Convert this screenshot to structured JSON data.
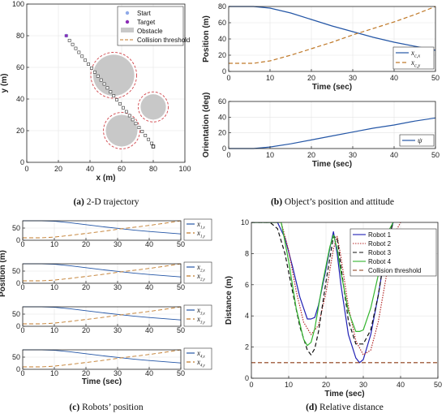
{
  "chart_data": [
    {
      "id": "traj",
      "type": "scatter",
      "xlabel": "x (m)",
      "ylabel": "y (m)",
      "xlim": [
        0,
        100
      ],
      "ylim": [
        0,
        100
      ],
      "xticks": [
        0,
        20,
        40,
        60,
        80,
        100
      ],
      "yticks": [
        0,
        20,
        40,
        60,
        80,
        100
      ],
      "grid": true,
      "legend_position": "top-right",
      "legend": [
        "Start",
        "Target",
        "Obstacle",
        "Collision threshold"
      ],
      "start": [
        25,
        80
      ],
      "target": [
        25,
        80
      ],
      "end": [
        80,
        10
      ],
      "path": [
        [
          25,
          80
        ],
        [
          27,
          77
        ],
        [
          29,
          74.5
        ],
        [
          31,
          72
        ],
        [
          33,
          69.5
        ],
        [
          35,
          67
        ],
        [
          37,
          64.5
        ],
        [
          39,
          62
        ],
        [
          41,
          59.5
        ],
        [
          43,
          57
        ],
        [
          45,
          54.5
        ],
        [
          47,
          52
        ],
        [
          49,
          49.5
        ],
        [
          51,
          47
        ],
        [
          53,
          44.5
        ],
        [
          55,
          42
        ],
        [
          57,
          39.5
        ],
        [
          59,
          37
        ],
        [
          61,
          34.5
        ],
        [
          63,
          32
        ],
        [
          65,
          29.5
        ],
        [
          67,
          27
        ],
        [
          69,
          24.5
        ],
        [
          71,
          22
        ],
        [
          73,
          19.5
        ],
        [
          75,
          17
        ],
        [
          77,
          14.5
        ],
        [
          79,
          12
        ],
        [
          80,
          10
        ]
      ],
      "obstacles": [
        {
          "center": [
            55,
            55
          ],
          "radius": 13
        },
        {
          "center": [
            80,
            35
          ],
          "radius": 8
        },
        {
          "center": [
            60,
            20
          ],
          "radius": 10
        }
      ],
      "caption_tag": "(a)",
      "caption": "2-D trajectory"
    },
    {
      "id": "pos",
      "type": "line",
      "xlabel": "Time (sec)",
      "ylabel": "Position (m)",
      "xlim": [
        0,
        50
      ],
      "ylim": [
        0,
        80
      ],
      "xticks": [
        0,
        10,
        20,
        30,
        40,
        50
      ],
      "yticks": [
        0,
        20,
        40,
        60,
        80
      ],
      "grid": true,
      "legend_position": "bottom-right",
      "x": [
        0,
        6,
        10,
        15,
        20,
        25,
        30,
        35,
        40,
        45,
        50
      ],
      "series": [
        {
          "symbol": "x",
          "subscript": "c,x",
          "color": "#2456a6",
          "dash": "solid",
          "values": [
            80,
            80,
            78,
            72,
            64,
            56,
            49,
            42,
            36,
            31,
            26
          ]
        },
        {
          "symbol": "x",
          "subscript": "c,y",
          "color": "#c07a2a",
          "dash": "dashed",
          "values": [
            10,
            10,
            13,
            20,
            28,
            36,
            45,
            53,
            61,
            70,
            80
          ]
        }
      ]
    },
    {
      "id": "ori",
      "type": "line",
      "xlabel": "Time (sec)",
      "ylabel": "Orientation (deg)",
      "xlim": [
        0,
        50
      ],
      "ylim": [
        0,
        60
      ],
      "xticks": [
        0,
        10,
        20,
        30,
        40,
        50
      ],
      "yticks": [
        0,
        20,
        40,
        60
      ],
      "grid": true,
      "legend_position": "bottom-right",
      "x": [
        0,
        6,
        10,
        15,
        20,
        25,
        30,
        35,
        40,
        45,
        50
      ],
      "series": [
        {
          "symbol": "ψ",
          "subscript": "",
          "color": "#2456a6",
          "dash": "solid",
          "values": [
            0,
            0,
            2,
            6,
            11,
            16,
            21,
            26,
            30,
            35,
            39
          ]
        }
      ],
      "caption_tag": "(b)",
      "caption": "Object’s position and attitude"
    },
    {
      "id": "r1",
      "type": "line",
      "xlim": [
        0,
        50
      ],
      "ylim": [
        0,
        80
      ],
      "xticks": [
        0,
        10,
        20,
        30,
        40,
        50
      ],
      "yticks": [
        0,
        50
      ],
      "show_xticklabels": true,
      "grid": true,
      "legend_position": "right",
      "x": [
        0,
        6,
        10,
        15,
        20,
        25,
        30,
        35,
        40,
        45,
        50
      ],
      "series": [
        {
          "symbol": "x",
          "subscript": "1,x",
          "color": "#2456a6",
          "dash": "solid",
          "values": [
            80,
            80,
            78,
            72,
            64,
            56,
            49,
            42,
            36,
            31,
            26
          ]
        },
        {
          "symbol": "x",
          "subscript": "1,y",
          "color": "#c07a2a",
          "dash": "dashed",
          "values": [
            10,
            10,
            13,
            20,
            28,
            36,
            45,
            53,
            61,
            70,
            80
          ]
        }
      ]
    },
    {
      "id": "r2",
      "type": "line",
      "xlim": [
        0,
        50
      ],
      "ylim": [
        0,
        80
      ],
      "xticks": [
        0,
        10,
        20,
        30,
        40,
        50
      ],
      "yticks": [
        0,
        50
      ],
      "show_xticklabels": true,
      "grid": true,
      "legend_position": "right",
      "ylabel": "Position (m)",
      "x": [
        0,
        6,
        10,
        15,
        20,
        25,
        30,
        35,
        40,
        45,
        50
      ],
      "series": [
        {
          "symbol": "x",
          "subscript": "2,x",
          "color": "#2456a6",
          "dash": "solid",
          "values": [
            80,
            80,
            78,
            72,
            64,
            56,
            49,
            42,
            36,
            31,
            26
          ]
        },
        {
          "symbol": "x",
          "subscript": "2,y",
          "color": "#c07a2a",
          "dash": "dashed",
          "values": [
            10,
            10,
            13,
            20,
            28,
            36,
            45,
            53,
            61,
            70,
            80
          ]
        }
      ]
    },
    {
      "id": "r3",
      "type": "line",
      "xlim": [
        0,
        50
      ],
      "ylim": [
        0,
        80
      ],
      "xticks": [
        0,
        10,
        20,
        30,
        40,
        50
      ],
      "yticks": [
        0,
        50
      ],
      "show_xticklabels": true,
      "grid": true,
      "legend_position": "right",
      "x": [
        0,
        6,
        10,
        15,
        20,
        25,
        30,
        35,
        40,
        45,
        50
      ],
      "series": [
        {
          "symbol": "x",
          "subscript": "3,x",
          "color": "#2456a6",
          "dash": "solid",
          "values": [
            80,
            80,
            78,
            72,
            64,
            56,
            49,
            42,
            36,
            31,
            26
          ]
        },
        {
          "symbol": "x",
          "subscript": "3,y",
          "color": "#c07a2a",
          "dash": "dashed",
          "values": [
            10,
            10,
            13,
            20,
            28,
            36,
            45,
            53,
            61,
            70,
            80
          ]
        }
      ]
    },
    {
      "id": "r4",
      "type": "line",
      "xlim": [
        0,
        50
      ],
      "ylim": [
        0,
        80
      ],
      "xticks": [
        0,
        10,
        20,
        30,
        40,
        50
      ],
      "yticks": [
        0,
        50
      ],
      "show_xticklabels": true,
      "grid": true,
      "legend_position": "right",
      "xlabel": "Time (sec)",
      "x": [
        0,
        6,
        10,
        15,
        20,
        25,
        30,
        35,
        40,
        45,
        50
      ],
      "series": [
        {
          "symbol": "x",
          "subscript": "4,x",
          "color": "#2456a6",
          "dash": "solid",
          "values": [
            80,
            80,
            78,
            72,
            64,
            56,
            49,
            42,
            36,
            31,
            26
          ]
        },
        {
          "symbol": "x",
          "subscript": "4,y",
          "color": "#c07a2a",
          "dash": "dashed",
          "values": [
            10,
            10,
            13,
            20,
            28,
            36,
            45,
            53,
            61,
            70,
            80
          ]
        }
      ],
      "caption_tag": "(c)",
      "caption": "Robots’ position"
    },
    {
      "id": "dist",
      "type": "line",
      "xlabel": "Time (sec)",
      "ylabel": "Distance (m)",
      "xlim": [
        0,
        50
      ],
      "ylim": [
        0,
        10
      ],
      "xticks": [
        0,
        10,
        20,
        30,
        40,
        50
      ],
      "yticks": [
        0,
        2,
        4,
        6,
        8,
        10
      ],
      "grid": true,
      "legend_position": "top-right",
      "series": [
        {
          "name": "Robot 1",
          "color": "#1f1fb4",
          "dash": "solid",
          "x": [
            0,
            5,
            7,
            9,
            11,
            13,
            15,
            16,
            17,
            18,
            20,
            21,
            22,
            23,
            24,
            26,
            28,
            29,
            30,
            32,
            34,
            36,
            38
          ],
          "values": [
            10,
            10,
            10,
            9.0,
            7.2,
            5.2,
            3.8,
            3.8,
            3.9,
            4.7,
            7.0,
            8.3,
            9.4,
            8.0,
            6.0,
            2.8,
            1.3,
            1.0,
            1.2,
            2.8,
            5.3,
            8.2,
            10
          ]
        },
        {
          "name": "Robot 2",
          "color": "#b42828",
          "dash": "dotted",
          "x": [
            0,
            5,
            8,
            10,
            12,
            14,
            16,
            18,
            20,
            22,
            23,
            24,
            26,
            28,
            30,
            32,
            34,
            36,
            38,
            40
          ],
          "values": [
            10,
            10,
            10,
            8.2,
            5.6,
            3.6,
            2.8,
            3.4,
            5.5,
            8.3,
            9.1,
            7.8,
            4.6,
            2.4,
            1.5,
            1.8,
            3.6,
            6.3,
            9.1,
            10
          ]
        },
        {
          "name": "Robot 3",
          "color": "#111111",
          "dash": "dashed",
          "x": [
            0,
            3,
            5,
            7,
            9,
            11,
            13,
            15,
            16,
            17,
            18,
            20,
            22,
            23,
            24,
            26,
            28,
            30,
            32,
            34,
            36,
            38
          ],
          "values": [
            10,
            10,
            10,
            9.6,
            8.0,
            5.6,
            3.3,
            1.8,
            1.5,
            1.9,
            3.0,
            6.2,
            9.1,
            9.0,
            7.2,
            3.7,
            2.2,
            2.2,
            3.1,
            5.3,
            8.3,
            10
          ]
        },
        {
          "name": "Robot 4",
          "color": "#33b52e",
          "dash": "solid",
          "x": [
            0,
            5,
            8,
            10,
            12,
            14,
            15,
            16,
            17,
            19,
            21,
            22,
            23,
            24,
            26,
            28,
            29,
            30,
            32,
            34,
            36,
            38
          ],
          "values": [
            10,
            10,
            10,
            7.5,
            4.5,
            2.5,
            2.1,
            2.3,
            3.2,
            6.0,
            8.4,
            9.2,
            8.3,
            6.8,
            4.3,
            3.0,
            3.0,
            3.1,
            4.5,
            6.6,
            9.1,
            10
          ]
        },
        {
          "name": "Collision threshold",
          "color": "#8b3a14",
          "dash": "dashed",
          "x": [
            0,
            50
          ],
          "values": [
            1,
            1
          ]
        }
      ],
      "caption_tag": "(d)",
      "caption": "Relative distance"
    }
  ]
}
